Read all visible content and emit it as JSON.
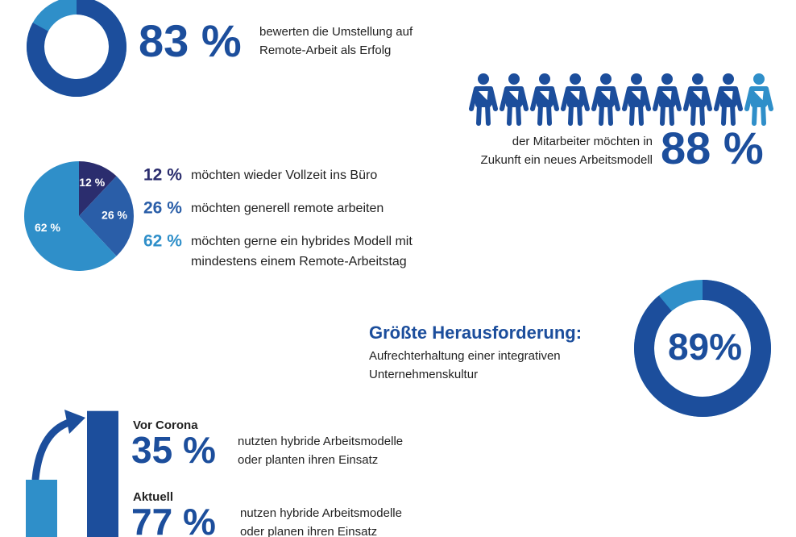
{
  "remote_success": {
    "value": 83,
    "label": "83 %",
    "text": [
      "bewerten die Umstellung auf",
      "Remote-Arbeit als Erfolg"
    ]
  },
  "new_model": {
    "value": 88,
    "label": "88 %",
    "text": [
      "der Mitarbeiter möchten in",
      "Zukunft ein neues Arbeitsmodell"
    ]
  },
  "preferences": {
    "segments": [
      {
        "value": 12,
        "label": "12 %",
        "text": [
          "möchten wieder Vollzeit ins Büro"
        ]
      },
      {
        "value": 26,
        "label": "26 %",
        "text": [
          "möchten generell remote arbeiten"
        ]
      },
      {
        "value": 62,
        "label": "62 %",
        "text": [
          "möchten gerne ein hybrides Modell mit",
          "mindestens einem Remote-Arbeitstag"
        ]
      }
    ]
  },
  "challenge": {
    "title": "Größte Herausforderung:",
    "text": [
      "Aufrechterhaltung einer integrativen",
      "Unternehmenskultur"
    ],
    "value": 89,
    "label": "89%"
  },
  "hybrid": {
    "items": [
      {
        "heading": "Vor Corona",
        "value": 35,
        "label": "35 %",
        "text": [
          "nutzten hybride Arbeitsmodelle",
          "oder planten ihren Einsatz"
        ]
      },
      {
        "heading": "Aktuell",
        "value": 77,
        "label": "77 %",
        "text": [
          "nutzen hybride Arbeitsmodelle",
          "oder planen ihren Einsatz"
        ]
      }
    ]
  }
}
